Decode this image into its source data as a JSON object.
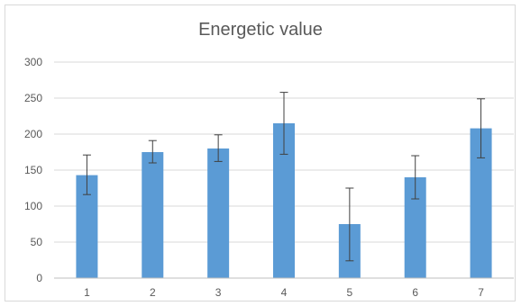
{
  "chart_data": {
    "type": "bar",
    "title": "Energetic value",
    "xlabel": "",
    "ylabel": "",
    "categories": [
      "1",
      "2",
      "3",
      "4",
      "5",
      "6",
      "7"
    ],
    "values": [
      143,
      175,
      180,
      215,
      75,
      140,
      208
    ],
    "error_low": [
      116,
      160,
      162,
      172,
      24,
      110,
      167
    ],
    "error_high": [
      171,
      191,
      199,
      258,
      125,
      170,
      249
    ],
    "ylim": [
      0,
      300
    ],
    "yticks": [
      0,
      50,
      100,
      150,
      200,
      250,
      300
    ],
    "grid": true,
    "legend": "none",
    "colors": {
      "bar": "#5b9bd5",
      "grid": "#d9d9d9",
      "error_bar": "#404040",
      "axis": "#bfbfbf"
    }
  }
}
